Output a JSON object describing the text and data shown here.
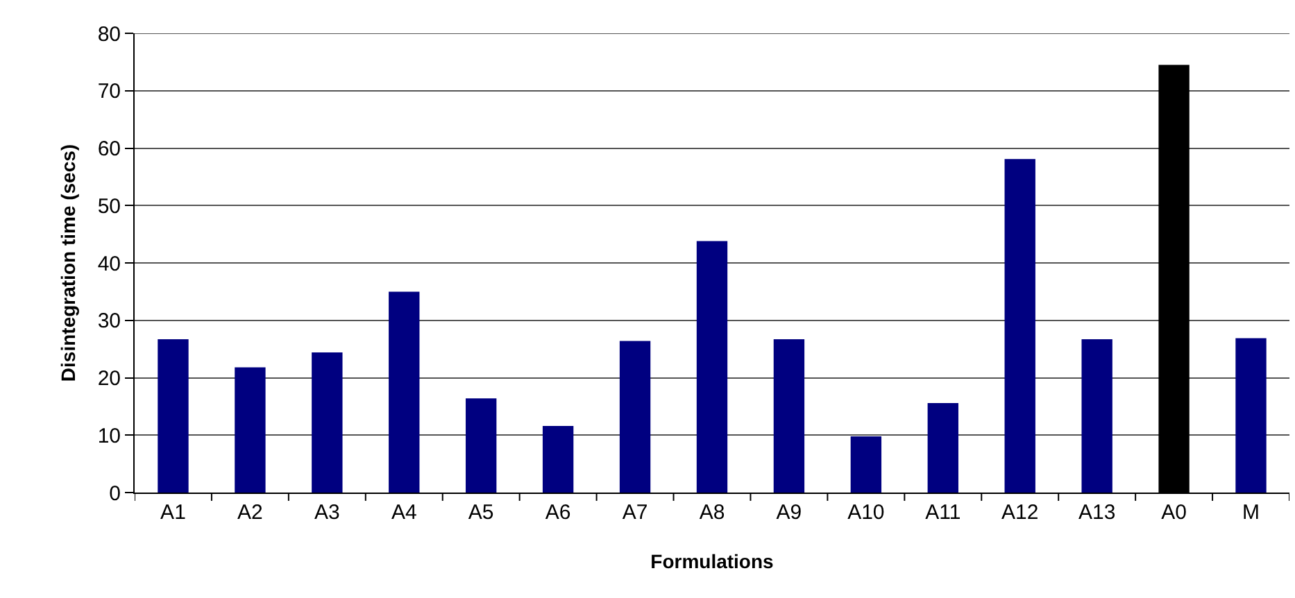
{
  "chart_data": {
    "type": "bar",
    "xlabel": "Formulations",
    "ylabel": "Disintegration time (secs)",
    "categories": [
      "A1",
      "A2",
      "A3",
      "A4",
      "A5",
      "A6",
      "A7",
      "A8",
      "A9",
      "A10",
      "A11",
      "A12",
      "A13",
      "A0",
      "M"
    ],
    "values": [
      26.7,
      21.8,
      24.4,
      35.0,
      16.4,
      11.6,
      26.4,
      43.8,
      26.7,
      9.8,
      15.6,
      58.1,
      26.7,
      74.5,
      26.9
    ],
    "colors": [
      "#000080",
      "#000080",
      "#000080",
      "#000080",
      "#000080",
      "#000080",
      "#000080",
      "#000080",
      "#000080",
      "#000080",
      "#000080",
      "#000080",
      "#000080",
      "#000000",
      "#000080"
    ],
    "ylim": [
      0,
      80
    ],
    "yticks": [
      0,
      10,
      20,
      30,
      40,
      50,
      60,
      70,
      80
    ],
    "grid": "y"
  }
}
